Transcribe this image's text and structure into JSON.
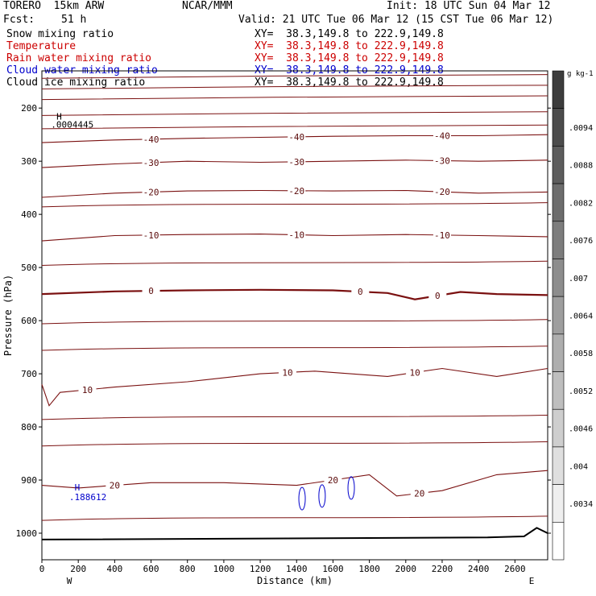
{
  "header": {
    "model": "TORERO  15km ARW",
    "org": "NCAR/MMM",
    "init": "Init: 18 UTC Sun 04 Mar 12",
    "fcst_label": "Fcst:",
    "fcst_value": "51 h",
    "valid": "Valid: 21 UTC Tue 06 Mar 12 (15 CST Tue 06 Mar 12)"
  },
  "legend": [
    {
      "name": "Snow mixing ratio",
      "color": "#000000",
      "xy": "XY=  38.3,149.8 to 222.9,149.8"
    },
    {
      "name": "Temperature",
      "color": "#cc0000",
      "xy": "XY=  38.3,149.8 to 222.9,149.8"
    },
    {
      "name": "Rain water mixing ratio",
      "color": "#cc0000",
      "xy": "XY=  38.3,149.8 to 222.9,149.8"
    },
    {
      "name": "Cloud water mixing ratio",
      "color": "#0000cc",
      "xy": "XY=  38.3,149.8 to 222.9,149.8"
    },
    {
      "name": "Cloud ice mixing ratio",
      "color": "#000000",
      "xy": "XY=  38.3,149.8 to 222.9,149.8"
    }
  ],
  "chart_data": {
    "type": "line",
    "xlabel": "Distance (km)",
    "ylabel": "Pressure (hPa)",
    "xlim": [
      0,
      2780
    ],
    "ylim": [
      1050,
      130
    ],
    "xticks": [
      0,
      200,
      400,
      600,
      800,
      1000,
      1200,
      1400,
      1600,
      1800,
      2000,
      2200,
      2400,
      2600
    ],
    "yticks": [
      200,
      300,
      400,
      500,
      600,
      700,
      800,
      900,
      1000
    ],
    "x_end_labels": {
      "left": "W",
      "right": "E"
    },
    "colorbar": {
      "unit": "g kg-1",
      "labels": [
        ".0094",
        ".0088",
        ".0082",
        ".0076",
        ".007",
        ".0064",
        ".0058",
        ".0052",
        ".0046",
        ".004",
        ".0034"
      ]
    },
    "isotherms": [
      {
        "label": "-40",
        "points": [
          [
            0,
            265
          ],
          [
            400,
            260
          ],
          [
            800,
            257
          ],
          [
            1200,
            255
          ],
          [
            1600,
            253
          ],
          [
            2000,
            252
          ],
          [
            2400,
            252
          ],
          [
            2780,
            250
          ]
        ]
      },
      {
        "label": "-30",
        "points": [
          [
            0,
            312
          ],
          [
            400,
            305
          ],
          [
            800,
            300
          ],
          [
            1200,
            302
          ],
          [
            1600,
            300
          ],
          [
            2000,
            298
          ],
          [
            2400,
            300
          ],
          [
            2780,
            298
          ]
        ]
      },
      {
        "label": "-20",
        "points": [
          [
            0,
            368
          ],
          [
            400,
            360
          ],
          [
            800,
            356
          ],
          [
            1200,
            355
          ],
          [
            1600,
            356
          ],
          [
            2000,
            355
          ],
          [
            2400,
            360
          ],
          [
            2780,
            358
          ]
        ]
      },
      {
        "label": "-10",
        "points": [
          [
            0,
            450
          ],
          [
            400,
            440
          ],
          [
            800,
            438
          ],
          [
            1200,
            437
          ],
          [
            1600,
            440
          ],
          [
            2000,
            438
          ],
          [
            2400,
            440
          ],
          [
            2780,
            442
          ]
        ]
      },
      {
        "label": "0",
        "points": [
          [
            0,
            550
          ],
          [
            400,
            545
          ],
          [
            800,
            543
          ],
          [
            1200,
            542
          ],
          [
            1600,
            543
          ],
          [
            1900,
            548
          ],
          [
            2050,
            560
          ],
          [
            2300,
            546
          ],
          [
            2500,
            550
          ],
          [
            2780,
            552
          ]
        ]
      },
      {
        "label": "10",
        "points": [
          [
            0,
            720
          ],
          [
            40,
            760
          ],
          [
            100,
            735
          ],
          [
            400,
            725
          ],
          [
            800,
            715
          ],
          [
            1200,
            700
          ],
          [
            1500,
            695
          ],
          [
            1900,
            705
          ],
          [
            2200,
            690
          ],
          [
            2500,
            705
          ],
          [
            2780,
            690
          ]
        ]
      },
      {
        "label": "20",
        "points": [
          [
            0,
            910
          ],
          [
            200,
            915
          ],
          [
            600,
            905
          ],
          [
            1000,
            905
          ],
          [
            1400,
            910
          ],
          [
            1800,
            890
          ],
          [
            1950,
            930
          ],
          [
            2200,
            920
          ],
          [
            2500,
            890
          ],
          [
            2780,
            882
          ]
        ]
      }
    ],
    "annotations": [
      {
        "text": "H",
        "x": 80,
        "y": 222,
        "color": "#000000"
      },
      {
        "text": ".0004445",
        "x": 50,
        "y": 237,
        "color": "#000000"
      },
      {
        "text": "H",
        "x": 180,
        "y": 920,
        "color": "#0000cc"
      },
      {
        "text": ".188612",
        "x": 150,
        "y": 938,
        "color": "#0000cc"
      }
    ],
    "grid": false
  }
}
